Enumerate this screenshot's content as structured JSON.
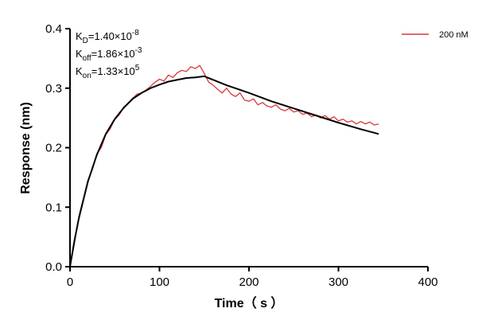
{
  "chart_data": {
    "type": "line",
    "xlabel": "Time（ s ）",
    "ylabel": "Response (nm)",
    "xlim": [
      0,
      400
    ],
    "ylim": [
      0,
      0.4
    ],
    "xticks": [
      0,
      100,
      200,
      300,
      400
    ],
    "yticks": [
      {
        "value": 0,
        "label": "0.0"
      },
      0.1,
      0.2,
      0.3,
      0.4
    ],
    "legend": "upper right",
    "annotations": [
      {
        "symbol": "K",
        "subscript": "D",
        "text": "=1.40×10",
        "exponent": "-8"
      },
      {
        "symbol": "K",
        "subscript": "off",
        "text": "=1.86×10",
        "exponent": "-3"
      },
      {
        "symbol": "K",
        "subscript": "on",
        "text": "=1.33×10",
        "exponent": "5"
      }
    ],
    "series": [
      {
        "name": "200 nM",
        "color": "#d9383a",
        "x": [
          0,
          5,
          10,
          15,
          20,
          25,
          30,
          35,
          40,
          45,
          50,
          55,
          60,
          65,
          70,
          75,
          80,
          85,
          90,
          95,
          100,
          105,
          110,
          115,
          120,
          125,
          130,
          135,
          140,
          145,
          150,
          155,
          160,
          165,
          170,
          175,
          180,
          185,
          190,
          195,
          200,
          205,
          210,
          215,
          220,
          225,
          230,
          235,
          240,
          245,
          250,
          255,
          260,
          265,
          270,
          275,
          280,
          285,
          290,
          295,
          300,
          305,
          310,
          315,
          320,
          325,
          330,
          335,
          340,
          345
        ],
        "values": [
          0,
          0.04,
          0.085,
          0.115,
          0.145,
          0.163,
          0.19,
          0.2,
          0.222,
          0.232,
          0.248,
          0.255,
          0.268,
          0.275,
          0.283,
          0.29,
          0.292,
          0.297,
          0.303,
          0.31,
          0.315,
          0.312,
          0.322,
          0.318,
          0.326,
          0.33,
          0.328,
          0.336,
          0.333,
          0.338,
          0.325,
          0.31,
          0.305,
          0.298,
          0.292,
          0.3,
          0.29,
          0.286,
          0.292,
          0.28,
          0.278,
          0.282,
          0.272,
          0.276,
          0.27,
          0.268,
          0.272,
          0.265,
          0.262,
          0.266,
          0.26,
          0.262,
          0.256,
          0.258,
          0.252,
          0.255,
          0.25,
          0.254,
          0.248,
          0.252,
          0.245,
          0.248,
          0.243,
          0.245,
          0.24,
          0.244,
          0.24,
          0.243,
          0.238,
          0.24
        ]
      },
      {
        "color": "#000000",
        "x": [
          0,
          5,
          10,
          20,
          30,
          40,
          50,
          60,
          70,
          80,
          90,
          100,
          110,
          120,
          130,
          140,
          150,
          175,
          200,
          225,
          250,
          275,
          300,
          325,
          345
        ],
        "values": [
          0,
          0.044,
          0.082,
          0.143,
          0.188,
          0.223,
          0.248,
          0.267,
          0.282,
          0.292,
          0.3,
          0.306,
          0.311,
          0.314,
          0.317,
          0.318,
          0.32,
          0.305,
          0.292,
          0.278,
          0.266,
          0.254,
          0.242,
          0.231,
          0.223
        ]
      }
    ]
  }
}
